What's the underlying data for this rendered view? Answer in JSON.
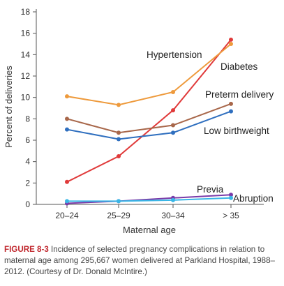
{
  "chart_data": {
    "type": "line",
    "categories": [
      "20–24",
      "25–29",
      "30–34",
      "> 35"
    ],
    "xlabel": "Maternal age",
    "ylabel": "Percent of deliveries",
    "ylim": [
      0,
      18
    ],
    "yticks": [
      "0",
      "2",
      "4",
      "6",
      "8",
      "10",
      "12",
      "14",
      "16",
      "18"
    ],
    "grid": false,
    "legend": "inline labels",
    "series": [
      {
        "name": "Hypertension",
        "color": "#e03a3a",
        "values": [
          2.1,
          4.5,
          8.8,
          15.4
        ]
      },
      {
        "name": "Diabetes",
        "color": "#ee9a3c",
        "values": [
          10.1,
          9.3,
          10.5,
          15.0
        ]
      },
      {
        "name": "Preterm delivery",
        "color": "#a8674a",
        "values": [
          8.0,
          6.7,
          7.4,
          9.4
        ]
      },
      {
        "name": "Low birthweight",
        "color": "#2f6fbf",
        "values": [
          7.0,
          6.1,
          6.7,
          8.7
        ]
      },
      {
        "name": "Previa",
        "color": "#7a3aa8",
        "values": [
          0.1,
          0.3,
          0.6,
          0.9
        ]
      },
      {
        "name": "Abruption",
        "color": "#39b6e6",
        "values": [
          0.3,
          0.3,
          0.4,
          0.6
        ]
      }
    ]
  },
  "caption": {
    "label": "FIGURE 8-3",
    "text": "Incidence of selected pregnancy complications in relation to maternal age among 295,667 women delivered at Parkland Hospital, 1988–2012. (Courtesy of Dr. Donald McIntire.)"
  }
}
